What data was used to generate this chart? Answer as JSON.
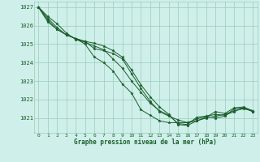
{
  "xlabel": "Graphe pression niveau de la mer (hPa)",
  "xlim": [
    -0.5,
    23.5
  ],
  "ylim": [
    1020.2,
    1027.3
  ],
  "yticks": [
    1021,
    1022,
    1023,
    1024,
    1025,
    1026,
    1027
  ],
  "xticks": [
    0,
    1,
    2,
    3,
    4,
    5,
    6,
    7,
    8,
    9,
    10,
    11,
    12,
    13,
    14,
    15,
    16,
    17,
    18,
    19,
    20,
    21,
    22,
    23
  ],
  "bg_color": "#cff0ea",
  "grid_color": "#99ccbb",
  "line_color": "#1a5c2a",
  "curves": [
    [
      1027.0,
      1026.5,
      1026.1,
      1025.6,
      1025.25,
      1025.1,
      1024.9,
      1024.7,
      1024.2,
      1023.7,
      1023.0,
      1022.4,
      1021.8,
      1021.4,
      1021.15,
      1020.7,
      1020.65,
      1021.05,
      1021.1,
      1021.0,
      1021.1,
      1021.5,
      1021.55,
      1021.35
    ],
    [
      1027.0,
      1026.4,
      1025.9,
      1025.5,
      1025.3,
      1025.15,
      1025.05,
      1024.9,
      1024.65,
      1024.3,
      1023.6,
      1022.8,
      1022.15,
      1021.6,
      1021.2,
      1020.65,
      1020.6,
      1020.85,
      1021.05,
      1021.35,
      1021.25,
      1021.55,
      1021.6,
      1021.4
    ],
    [
      1027.0,
      1026.3,
      1025.8,
      1025.5,
      1025.3,
      1025.15,
      1024.75,
      1024.65,
      1024.5,
      1024.2,
      1023.4,
      1022.6,
      1021.9,
      1021.35,
      1021.1,
      1020.9,
      1020.75,
      1020.95,
      1021.1,
      1021.2,
      1021.15,
      1021.35,
      1021.55,
      1021.35
    ],
    [
      1027.0,
      1026.2,
      1025.8,
      1025.5,
      1025.3,
      1025.0,
      1024.3,
      1024.0,
      1023.55,
      1022.85,
      1022.35,
      1021.45,
      1021.15,
      1020.85,
      1020.75,
      1020.75,
      1020.75,
      1020.85,
      1021.0,
      1021.1,
      1021.2,
      1021.4,
      1021.5,
      1021.4
    ]
  ]
}
